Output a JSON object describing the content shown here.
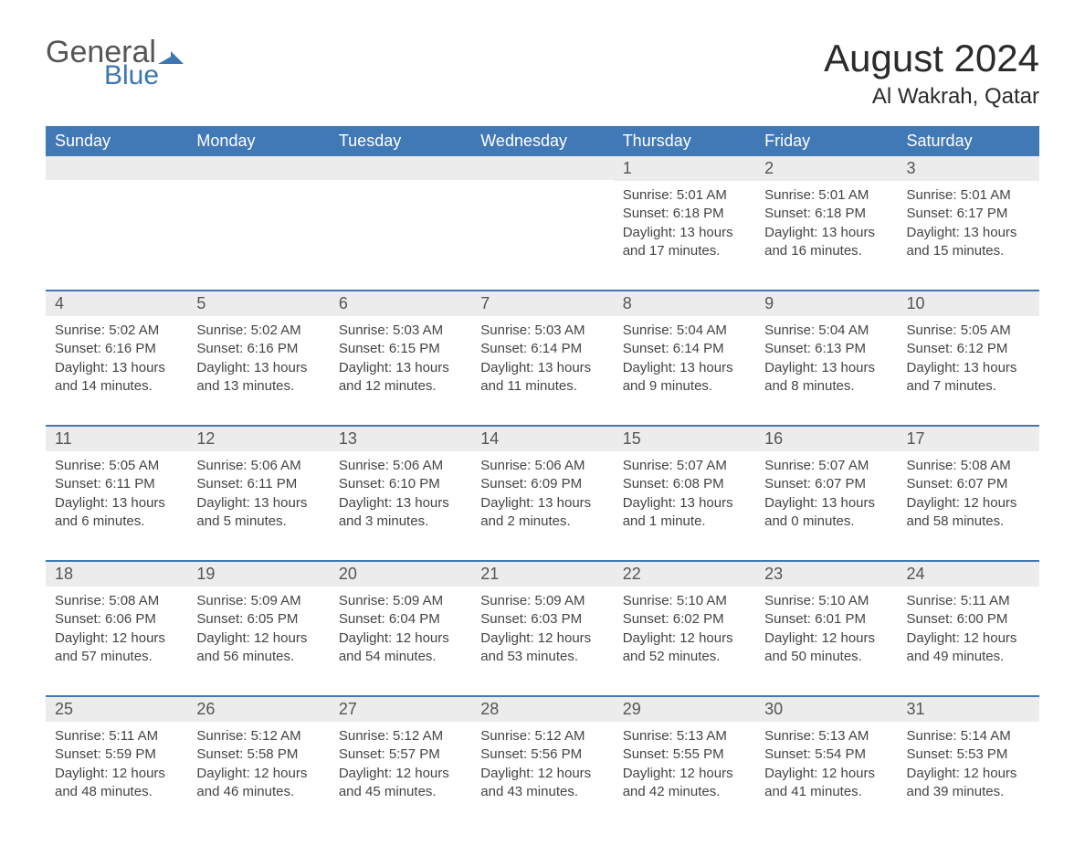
{
  "logo": {
    "text_general": "General",
    "text_blue": "Blue",
    "flag_color": "#3b76b5"
  },
  "title": "August 2024",
  "location": "Al Wakrah, Qatar",
  "colors": {
    "header_bg": "#4178b6",
    "header_text": "#ffffff",
    "daynum_bg": "#ececec",
    "row_divider": "#4178b6",
    "body_text": "#444444",
    "page_bg": "#ffffff"
  },
  "day_headers": [
    "Sunday",
    "Monday",
    "Tuesday",
    "Wednesday",
    "Thursday",
    "Friday",
    "Saturday"
  ],
  "weeks": [
    [
      {
        "n": "",
        "sunrise": "",
        "sunset": "",
        "daylight": ""
      },
      {
        "n": "",
        "sunrise": "",
        "sunset": "",
        "daylight": ""
      },
      {
        "n": "",
        "sunrise": "",
        "sunset": "",
        "daylight": ""
      },
      {
        "n": "",
        "sunrise": "",
        "sunset": "",
        "daylight": ""
      },
      {
        "n": "1",
        "sunrise": "Sunrise: 5:01 AM",
        "sunset": "Sunset: 6:18 PM",
        "daylight": "Daylight: 13 hours and 17 minutes."
      },
      {
        "n": "2",
        "sunrise": "Sunrise: 5:01 AM",
        "sunset": "Sunset: 6:18 PM",
        "daylight": "Daylight: 13 hours and 16 minutes."
      },
      {
        "n": "3",
        "sunrise": "Sunrise: 5:01 AM",
        "sunset": "Sunset: 6:17 PM",
        "daylight": "Daylight: 13 hours and 15 minutes."
      }
    ],
    [
      {
        "n": "4",
        "sunrise": "Sunrise: 5:02 AM",
        "sunset": "Sunset: 6:16 PM",
        "daylight": "Daylight: 13 hours and 14 minutes."
      },
      {
        "n": "5",
        "sunrise": "Sunrise: 5:02 AM",
        "sunset": "Sunset: 6:16 PM",
        "daylight": "Daylight: 13 hours and 13 minutes."
      },
      {
        "n": "6",
        "sunrise": "Sunrise: 5:03 AM",
        "sunset": "Sunset: 6:15 PM",
        "daylight": "Daylight: 13 hours and 12 minutes."
      },
      {
        "n": "7",
        "sunrise": "Sunrise: 5:03 AM",
        "sunset": "Sunset: 6:14 PM",
        "daylight": "Daylight: 13 hours and 11 minutes."
      },
      {
        "n": "8",
        "sunrise": "Sunrise: 5:04 AM",
        "sunset": "Sunset: 6:14 PM",
        "daylight": "Daylight: 13 hours and 9 minutes."
      },
      {
        "n": "9",
        "sunrise": "Sunrise: 5:04 AM",
        "sunset": "Sunset: 6:13 PM",
        "daylight": "Daylight: 13 hours and 8 minutes."
      },
      {
        "n": "10",
        "sunrise": "Sunrise: 5:05 AM",
        "sunset": "Sunset: 6:12 PM",
        "daylight": "Daylight: 13 hours and 7 minutes."
      }
    ],
    [
      {
        "n": "11",
        "sunrise": "Sunrise: 5:05 AM",
        "sunset": "Sunset: 6:11 PM",
        "daylight": "Daylight: 13 hours and 6 minutes."
      },
      {
        "n": "12",
        "sunrise": "Sunrise: 5:06 AM",
        "sunset": "Sunset: 6:11 PM",
        "daylight": "Daylight: 13 hours and 5 minutes."
      },
      {
        "n": "13",
        "sunrise": "Sunrise: 5:06 AM",
        "sunset": "Sunset: 6:10 PM",
        "daylight": "Daylight: 13 hours and 3 minutes."
      },
      {
        "n": "14",
        "sunrise": "Sunrise: 5:06 AM",
        "sunset": "Sunset: 6:09 PM",
        "daylight": "Daylight: 13 hours and 2 minutes."
      },
      {
        "n": "15",
        "sunrise": "Sunrise: 5:07 AM",
        "sunset": "Sunset: 6:08 PM",
        "daylight": "Daylight: 13 hours and 1 minute."
      },
      {
        "n": "16",
        "sunrise": "Sunrise: 5:07 AM",
        "sunset": "Sunset: 6:07 PM",
        "daylight": "Daylight: 13 hours and 0 minutes."
      },
      {
        "n": "17",
        "sunrise": "Sunrise: 5:08 AM",
        "sunset": "Sunset: 6:07 PM",
        "daylight": "Daylight: 12 hours and 58 minutes."
      }
    ],
    [
      {
        "n": "18",
        "sunrise": "Sunrise: 5:08 AM",
        "sunset": "Sunset: 6:06 PM",
        "daylight": "Daylight: 12 hours and 57 minutes."
      },
      {
        "n": "19",
        "sunrise": "Sunrise: 5:09 AM",
        "sunset": "Sunset: 6:05 PM",
        "daylight": "Daylight: 12 hours and 56 minutes."
      },
      {
        "n": "20",
        "sunrise": "Sunrise: 5:09 AM",
        "sunset": "Sunset: 6:04 PM",
        "daylight": "Daylight: 12 hours and 54 minutes."
      },
      {
        "n": "21",
        "sunrise": "Sunrise: 5:09 AM",
        "sunset": "Sunset: 6:03 PM",
        "daylight": "Daylight: 12 hours and 53 minutes."
      },
      {
        "n": "22",
        "sunrise": "Sunrise: 5:10 AM",
        "sunset": "Sunset: 6:02 PM",
        "daylight": "Daylight: 12 hours and 52 minutes."
      },
      {
        "n": "23",
        "sunrise": "Sunrise: 5:10 AM",
        "sunset": "Sunset: 6:01 PM",
        "daylight": "Daylight: 12 hours and 50 minutes."
      },
      {
        "n": "24",
        "sunrise": "Sunrise: 5:11 AM",
        "sunset": "Sunset: 6:00 PM",
        "daylight": "Daylight: 12 hours and 49 minutes."
      }
    ],
    [
      {
        "n": "25",
        "sunrise": "Sunrise: 5:11 AM",
        "sunset": "Sunset: 5:59 PM",
        "daylight": "Daylight: 12 hours and 48 minutes."
      },
      {
        "n": "26",
        "sunrise": "Sunrise: 5:12 AM",
        "sunset": "Sunset: 5:58 PM",
        "daylight": "Daylight: 12 hours and 46 minutes."
      },
      {
        "n": "27",
        "sunrise": "Sunrise: 5:12 AM",
        "sunset": "Sunset: 5:57 PM",
        "daylight": "Daylight: 12 hours and 45 minutes."
      },
      {
        "n": "28",
        "sunrise": "Sunrise: 5:12 AM",
        "sunset": "Sunset: 5:56 PM",
        "daylight": "Daylight: 12 hours and 43 minutes."
      },
      {
        "n": "29",
        "sunrise": "Sunrise: 5:13 AM",
        "sunset": "Sunset: 5:55 PM",
        "daylight": "Daylight: 12 hours and 42 minutes."
      },
      {
        "n": "30",
        "sunrise": "Sunrise: 5:13 AM",
        "sunset": "Sunset: 5:54 PM",
        "daylight": "Daylight: 12 hours and 41 minutes."
      },
      {
        "n": "31",
        "sunrise": "Sunrise: 5:14 AM",
        "sunset": "Sunset: 5:53 PM",
        "daylight": "Daylight: 12 hours and 39 minutes."
      }
    ]
  ]
}
